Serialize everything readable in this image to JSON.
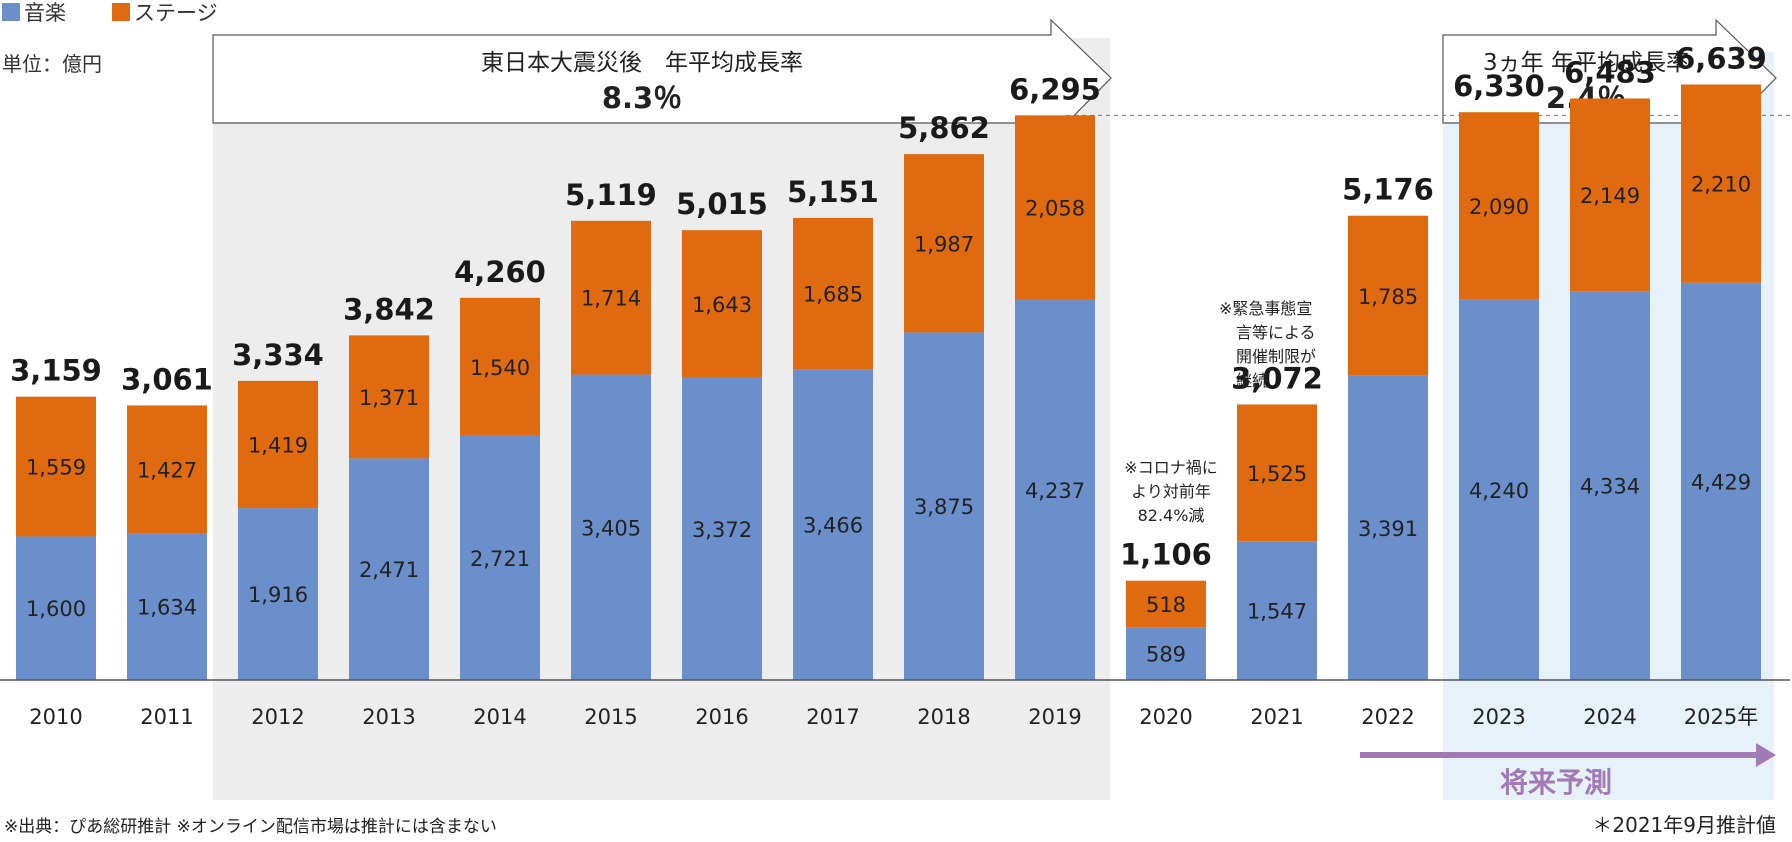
{
  "chart_data": {
    "type": "bar",
    "stacked": true,
    "categories": [
      "2010",
      "2011",
      "2012",
      "2013",
      "2014",
      "2015",
      "2016",
      "2017",
      "2018",
      "2019",
      "2020",
      "2021",
      "2022",
      "2023",
      "2024",
      "2025年"
    ],
    "series": [
      {
        "name": "音楽",
        "color": "#6a8fcb",
        "values": [
          1600,
          1634,
          1916,
          2471,
          2721,
          3405,
          3372,
          3466,
          3875,
          4237,
          589,
          1547,
          3391,
          4240,
          4334,
          4429
        ]
      },
      {
        "name": "ステージ",
        "color": "#e06a10",
        "values": [
          1559,
          1427,
          1419,
          1371,
          1540,
          1714,
          1643,
          1685,
          1987,
          2058,
          518,
          1525,
          1785,
          2090,
          2149,
          2210
        ]
      }
    ],
    "totals": [
      3159,
      3061,
      3334,
      3842,
      4260,
      5119,
      5015,
      5151,
      5862,
      6295,
      1106,
      3072,
      5176,
      6330,
      6483,
      6639
    ],
    "ylim": [
      0,
      6900
    ],
    "unit": "単位：億円",
    "legend_position": "top-left",
    "grid": false,
    "reference_line_value": 6295
  },
  "legend": {
    "music": "音楽",
    "stage": "ステージ",
    "music_color": "#6a8fcb",
    "stage_color": "#e06a10"
  },
  "unit_label": "単位：億円",
  "arrow_left": {
    "title": "東日本大震災後　年平均成長率",
    "rate": "8.3％"
  },
  "arrow_right": {
    "title": "3ヵ年  年平均成長率",
    "rate": "2.4％"
  },
  "notes": {
    "covid": [
      "※コロナ禍に",
      "より対前年",
      "82.4%減"
    ],
    "emergency": [
      "※緊急事態宣",
      "言等による",
      "開催制限が",
      "継続"
    ]
  },
  "forecast_label": "将来予測",
  "footer_left": "※出典：ぴあ総研推計 ※オンライン配信市場は推計には含まない",
  "footer_right": "＊2021年9月推計値",
  "colors": {
    "shade_gray": "#ededed",
    "shade_blue": "#e6f1fa",
    "forecast_arrow": "#a27bb6",
    "axis": "#555555"
  }
}
